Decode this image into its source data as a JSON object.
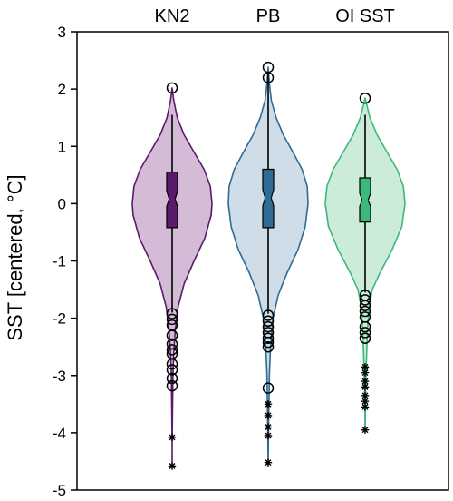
{
  "chart_data": {
    "type": "violin",
    "ylabel": "SST [centered, °C]",
    "ylim": [
      -5,
      3
    ],
    "yticks": [
      "3",
      "2",
      "1",
      "0",
      "-1",
      "-2",
      "-3",
      "-4",
      "-5"
    ],
    "ytick_values": [
      3,
      2,
      1,
      0,
      -1,
      -2,
      -3,
      -4,
      -5
    ],
    "grid": false,
    "series": [
      {
        "name": "KN2",
        "color": "#5c1a6b",
        "fill": "#d4bcd6",
        "box": {
          "q1": -0.42,
          "median": 0.08,
          "q3": 0.55,
          "notch_low": -0.05,
          "notch_high": 0.22,
          "whisker_low": -1.9,
          "whisker_high": 1.55
        },
        "outliers_circle": [
          2.02,
          -1.92,
          -2.02,
          -2.12,
          -2.3,
          -2.45,
          -2.55,
          -2.62,
          -2.8,
          -2.9,
          -3.05,
          -3.18
        ],
        "outliers_star": [
          -4.08,
          -4.58
        ],
        "violin": [
          [
            -4.58,
            0.0
          ],
          [
            -4.2,
            0.0
          ],
          [
            -3.6,
            0.01
          ],
          [
            -3.0,
            0.02
          ],
          [
            -2.6,
            0.04
          ],
          [
            -2.2,
            0.08
          ],
          [
            -1.8,
            0.15
          ],
          [
            -1.4,
            0.3
          ],
          [
            -1.0,
            0.55
          ],
          [
            -0.6,
            0.82
          ],
          [
            -0.2,
            0.98
          ],
          [
            0.0,
            1.0
          ],
          [
            0.3,
            0.96
          ],
          [
            0.6,
            0.8
          ],
          [
            0.9,
            0.55
          ],
          [
            1.2,
            0.3
          ],
          [
            1.5,
            0.13
          ],
          [
            1.8,
            0.04
          ],
          [
            2.02,
            0.0
          ]
        ]
      },
      {
        "name": "PB",
        "color": "#2f6b94",
        "fill": "#cfdde8",
        "box": {
          "q1": -0.42,
          "median": 0.1,
          "q3": 0.6,
          "notch_low": -0.04,
          "notch_high": 0.24,
          "whisker_low": -1.92,
          "whisker_high": 2.28
        },
        "outliers_circle": [
          2.38,
          2.2,
          -1.95,
          -2.05,
          -2.15,
          -2.25,
          -2.35,
          -2.42,
          -2.5,
          -3.22
        ],
        "outliers_star": [
          -3.5,
          -3.7,
          -3.9,
          -4.05,
          -4.52
        ],
        "violin": [
          [
            -4.55,
            0.0
          ],
          [
            -4.0,
            0.01
          ],
          [
            -3.5,
            0.02
          ],
          [
            -3.0,
            0.03
          ],
          [
            -2.5,
            0.06
          ],
          [
            -2.0,
            0.12
          ],
          [
            -1.6,
            0.25
          ],
          [
            -1.2,
            0.48
          ],
          [
            -0.8,
            0.75
          ],
          [
            -0.4,
            0.93
          ],
          [
            0.0,
            1.0
          ],
          [
            0.3,
            0.98
          ],
          [
            0.6,
            0.85
          ],
          [
            0.9,
            0.62
          ],
          [
            1.2,
            0.38
          ],
          [
            1.5,
            0.2
          ],
          [
            1.8,
            0.08
          ],
          [
            2.1,
            0.03
          ],
          [
            2.38,
            0.0
          ]
        ]
      },
      {
        "name": "OI SST",
        "color": "#3cb97a",
        "fill": "#cdebd9",
        "box": {
          "q1": -0.32,
          "median": 0.06,
          "q3": 0.45,
          "notch_low": -0.05,
          "notch_high": 0.18,
          "whisker_low": -1.55,
          "whisker_high": 1.55
        },
        "outliers_circle": [
          1.84,
          -1.6,
          -1.68,
          -1.78,
          -1.88,
          -1.98,
          -2.15,
          -2.25,
          -2.35
        ],
        "outliers_star": [
          -2.85,
          -2.95,
          -3.1,
          -3.2,
          -3.35,
          -3.45,
          -3.55,
          -3.95
        ],
        "violin": [
          [
            -3.98,
            0.0
          ],
          [
            -3.4,
            0.01
          ],
          [
            -2.8,
            0.03
          ],
          [
            -2.2,
            0.06
          ],
          [
            -1.8,
            0.1
          ],
          [
            -1.5,
            0.18
          ],
          [
            -1.2,
            0.38
          ],
          [
            -0.8,
            0.68
          ],
          [
            -0.4,
            0.92
          ],
          [
            0.0,
            1.0
          ],
          [
            0.3,
            0.96
          ],
          [
            0.6,
            0.8
          ],
          [
            0.9,
            0.55
          ],
          [
            1.2,
            0.3
          ],
          [
            1.5,
            0.12
          ],
          [
            1.84,
            0.0
          ]
        ]
      }
    ]
  }
}
